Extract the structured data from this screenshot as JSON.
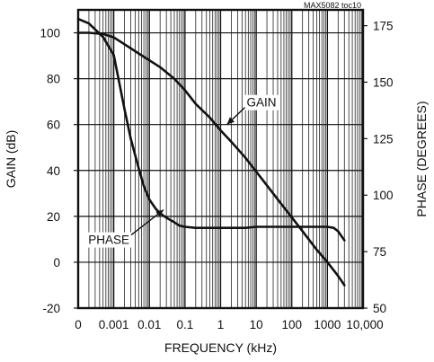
{
  "chart_data": {
    "type": "line",
    "code": "MAX5082 toc10",
    "xlabel": "FREQUENCY (kHz)",
    "ylabel": "GAIN (dB)",
    "y2label": "PHASE (DEGREES)",
    "xscale": "log",
    "xlim": [
      0.0001,
      10000
    ],
    "ylim": [
      -20,
      110
    ],
    "y2lim": [
      50,
      182
    ],
    "grid": true,
    "x_ticks": [
      {
        "label": "0",
        "value": 0.0001
      },
      {
        "label": "0.001",
        "value": 0.001
      },
      {
        "label": "0.01",
        "value": 0.01
      },
      {
        "label": "0.1",
        "value": 0.1
      },
      {
        "label": "1",
        "value": 1
      },
      {
        "label": "10",
        "value": 10
      },
      {
        "label": "100",
        "value": 100
      },
      {
        "label": "1000",
        "value": 1000
      },
      {
        "label": "10,000",
        "value": 10000
      }
    ],
    "y_ticks": [
      {
        "label": "-20",
        "value": -20
      },
      {
        "label": "0",
        "value": 0
      },
      {
        "label": "20",
        "value": 20
      },
      {
        "label": "40",
        "value": 40
      },
      {
        "label": "60",
        "value": 60
      },
      {
        "label": "80",
        "value": 80
      },
      {
        "label": "100",
        "value": 100
      }
    ],
    "y2_ticks": [
      {
        "label": "50",
        "value": 50
      },
      {
        "label": "75",
        "value": 75
      },
      {
        "label": "100",
        "value": 100
      },
      {
        "label": "125",
        "value": 125
      },
      {
        "label": "150",
        "value": 150
      },
      {
        "label": "175",
        "value": 175
      }
    ],
    "series": [
      {
        "name": "GAIN",
        "axis": "left",
        "x": [
          0.0001,
          0.0002,
          0.0005,
          0.001,
          0.002,
          0.005,
          0.01,
          0.02,
          0.05,
          0.1,
          0.2,
          0.5,
          1,
          2,
          5,
          10,
          20,
          50,
          100,
          200,
          500,
          1000,
          2000,
          3000
        ],
        "y": [
          100,
          100,
          99.5,
          98,
          95,
          91,
          88,
          85,
          80,
          75,
          69,
          63,
          57.5,
          52.5,
          45.5,
          39.5,
          33.5,
          25.5,
          19.5,
          13.5,
          5.5,
          0,
          -6,
          -10
        ]
      },
      {
        "name": "PHASE",
        "axis": "right",
        "x": [
          0.0001,
          0.0002,
          0.0005,
          0.001,
          0.0015,
          0.002,
          0.003,
          0.005,
          0.007,
          0.01,
          0.015,
          0.02,
          0.03,
          0.05,
          0.07,
          0.1,
          0.2,
          0.5,
          1,
          2,
          5,
          10,
          20,
          50,
          100,
          200,
          500,
          1000,
          1500,
          2000,
          3000
        ],
        "y": [
          178,
          176,
          170,
          162,
          148,
          138,
          125,
          112,
          104,
          98,
          94,
          92,
          90,
          88,
          86.5,
          86,
          85.5,
          85.5,
          85.5,
          85.5,
          85.5,
          86,
          86,
          86,
          86,
          86,
          86,
          86,
          85.5,
          84,
          80
        ]
      }
    ],
    "annotations": [
      {
        "text": "GAIN",
        "series": "GAIN",
        "x": 1.5,
        "y": 60
      },
      {
        "text": "PHASE",
        "series": "PHASE",
        "x": 0.025,
        "y": 93.5
      }
    ]
  }
}
